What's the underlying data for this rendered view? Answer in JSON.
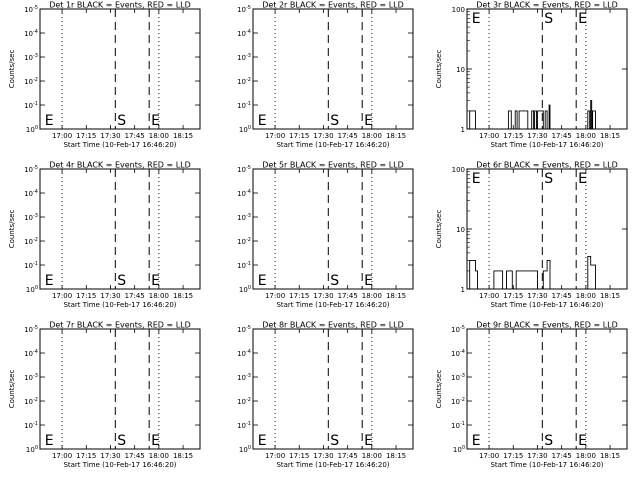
{
  "chart_data": [
    {
      "type": "line",
      "title": "Det 1r BLACK = Events, RED = LLD",
      "xlabel": "Start Time (10-Feb-17 16:46:20)",
      "ylabel": "Counts/sec",
      "yscale": "log",
      "ylim": [
        1,
        1e-05
      ],
      "yticks": [
        "10^0",
        "10^-1",
        "10^-2",
        "10^-3",
        "10^-4",
        "10^-5"
      ],
      "xticks": [
        "17:00",
        "17:15",
        "17:30",
        "17:45",
        "18:00",
        "18:15"
      ],
      "markers": [
        {
          "label": "E"
        },
        {
          "label": "S"
        },
        {
          "label": "E"
        }
      ],
      "series": []
    },
    {
      "type": "line",
      "title": "Det 2r BLACK = Events, RED = LLD",
      "xlabel": "Start Time (10-Feb-17 16:46:20)",
      "ylabel": "",
      "yscale": "log",
      "ylim": [
        1,
        1e-05
      ],
      "yticks": [
        "10^0",
        "10^-1",
        "10^-2",
        "10^-3",
        "10^-4",
        "10^-5"
      ],
      "xticks": [
        "17:00",
        "17:15",
        "17:30",
        "17:45",
        "18:00",
        "18:15"
      ],
      "markers": [
        {
          "label": "E"
        },
        {
          "label": "S"
        },
        {
          "label": "E"
        }
      ],
      "series": []
    },
    {
      "type": "line",
      "title": "Det 3r BLACK = Events, RED = LLD",
      "xlabel": "Start Time (10-Feb-17 16:46:20)",
      "ylabel": "Counts/sec",
      "yscale": "log",
      "ylim": [
        1,
        100
      ],
      "yticks": [
        "1",
        "10",
        "100"
      ],
      "xticks": [
        "17:00",
        "17:15",
        "17:30",
        "17:45",
        "18:00",
        "18:15"
      ],
      "markers": [
        {
          "label": "E"
        },
        {
          "label": "S"
        },
        {
          "label": "E"
        }
      ],
      "series": [
        {
          "color": "#000000",
          "points": [
            [
              16.8,
              1
            ],
            [
              16.8,
              2
            ],
            [
              16.86,
              2
            ],
            [
              16.86,
              1
            ],
            [
              17.2,
              1
            ],
            [
              17.2,
              2
            ],
            [
              17.23,
              2
            ],
            [
              17.23,
              1
            ],
            [
              17.27,
              1
            ],
            [
              17.27,
              2
            ],
            [
              17.29,
              2
            ],
            [
              17.29,
              1
            ],
            [
              17.31,
              1
            ],
            [
              17.31,
              2
            ],
            [
              17.4,
              2
            ],
            [
              17.4,
              1
            ],
            [
              17.44,
              1
            ],
            [
              17.44,
              2
            ],
            [
              17.46,
              2
            ],
            [
              17.46,
              1
            ],
            [
              17.47,
              1
            ],
            [
              17.47,
              2
            ],
            [
              17.49,
              2
            ],
            [
              17.49,
              1
            ],
            [
              17.5,
              1
            ],
            [
              17.5,
              2
            ],
            [
              17.56,
              2
            ],
            [
              17.56,
              1
            ],
            [
              17.58,
              1
            ],
            [
              17.58,
              2
            ],
            [
              17.6,
              2
            ],
            [
              17.6,
              1
            ],
            [
              17.62,
              1
            ],
            [
              17.62,
              2.5
            ],
            [
              17.63,
              2.5
            ],
            [
              17.63,
              1
            ],
            [
              18.02,
              1
            ],
            [
              18.02,
              2
            ],
            [
              18.04,
              2
            ],
            [
              18.04,
              1
            ],
            [
              18.05,
              1
            ],
            [
              18.05,
              3
            ],
            [
              18.06,
              3
            ],
            [
              18.06,
              1
            ],
            [
              18.07,
              1
            ],
            [
              18.07,
              2
            ],
            [
              18.1,
              2
            ],
            [
              18.1,
              1
            ]
          ]
        }
      ]
    },
    {
      "type": "line",
      "title": "Det 4r BLACK = Events, RED = LLD",
      "xlabel": "Start Time (10-Feb-17 16:46:20)",
      "ylabel": "Counts/sec",
      "yscale": "log",
      "ylim": [
        1,
        1e-05
      ],
      "yticks": [
        "10^0",
        "10^-1",
        "10^-2",
        "10^-3",
        "10^-4",
        "10^-5"
      ],
      "xticks": [
        "17:00",
        "17:15",
        "17:30",
        "17:45",
        "18:00",
        "18:15"
      ],
      "markers": [
        {
          "label": "E"
        },
        {
          "label": "S"
        },
        {
          "label": "E"
        }
      ],
      "series": []
    },
    {
      "type": "line",
      "title": "Det 5r BLACK = Events, RED = LLD",
      "xlabel": "Start Time (10-Feb-17 16:46:20)",
      "ylabel": "",
      "yscale": "log",
      "ylim": [
        1,
        1e-05
      ],
      "yticks": [
        "10^0",
        "10^-1",
        "10^-2",
        "10^-3",
        "10^-4",
        "10^-5"
      ],
      "xticks": [
        "17:00",
        "17:15",
        "17:30",
        "17:45",
        "18:00",
        "18:15"
      ],
      "markers": [
        {
          "label": "E"
        },
        {
          "label": "S"
        },
        {
          "label": "E"
        }
      ],
      "series": []
    },
    {
      "type": "line",
      "title": "Det 6r BLACK = Events, RED = LLD",
      "xlabel": "Start Time (10-Feb-17 16:46:20)",
      "ylabel": "Counts/sec",
      "yscale": "log",
      "ylim": [
        1,
        100
      ],
      "yticks": [
        "1",
        "10",
        "100"
      ],
      "xticks": [
        "17:00",
        "17:15",
        "17:30",
        "17:45",
        "18:00",
        "18:15"
      ],
      "markers": [
        {
          "label": "E"
        },
        {
          "label": "S"
        },
        {
          "label": "E"
        }
      ],
      "series": [
        {
          "color": "#000000",
          "points": [
            [
              16.8,
              1
            ],
            [
              16.8,
              3
            ],
            [
              16.86,
              3
            ],
            [
              16.86,
              2
            ],
            [
              16.88,
              2
            ],
            [
              16.88,
              1
            ],
            [
              17.05,
              1
            ],
            [
              17.05,
              2
            ],
            [
              17.14,
              2
            ],
            [
              17.14,
              1
            ],
            [
              17.18,
              1
            ],
            [
              17.18,
              2
            ],
            [
              17.24,
              2
            ],
            [
              17.24,
              1
            ],
            [
              17.28,
              1
            ],
            [
              17.28,
              2
            ],
            [
              17.5,
              2
            ],
            [
              17.5,
              1
            ],
            [
              17.56,
              1
            ],
            [
              17.56,
              2
            ],
            [
              17.6,
              2
            ],
            [
              17.6,
              3
            ],
            [
              17.63,
              3
            ],
            [
              17.63,
              1
            ],
            [
              18.02,
              1
            ],
            [
              18.02,
              3.5
            ],
            [
              18.05,
              3.5
            ],
            [
              18.05,
              2.5
            ],
            [
              18.1,
              2.5
            ],
            [
              18.1,
              1
            ]
          ]
        }
      ]
    },
    {
      "type": "line",
      "title": "Det 7r BLACK = Events, RED = LLD",
      "xlabel": "Start Time (10-Feb-17 16:46:20)",
      "ylabel": "Counts/sec",
      "yscale": "log",
      "ylim": [
        1,
        1e-05
      ],
      "yticks": [
        "10^0",
        "10^-1",
        "10^-2",
        "10^-3",
        "10^-4",
        "10^-5"
      ],
      "xticks": [
        "17:00",
        "17:15",
        "17:30",
        "17:45",
        "18:00",
        "18:15"
      ],
      "markers": [
        {
          "label": "E"
        },
        {
          "label": "S"
        },
        {
          "label": "E"
        }
      ],
      "series": []
    },
    {
      "type": "line",
      "title": "Det 8r BLACK = Events, RED = LLD",
      "xlabel": "Start Time (10-Feb-17 16:46:20)",
      "ylabel": "",
      "yscale": "log",
      "ylim": [
        1,
        1e-05
      ],
      "yticks": [
        "10^0",
        "10^-1",
        "10^-2",
        "10^-3",
        "10^-4",
        "10^-5"
      ],
      "xticks": [
        "17:00",
        "17:15",
        "17:30",
        "17:45",
        "18:00",
        "18:15"
      ],
      "markers": [
        {
          "label": "E"
        },
        {
          "label": "S"
        },
        {
          "label": "E"
        }
      ],
      "series": []
    },
    {
      "type": "line",
      "title": "Det 9r BLACK = Events, RED = LLD",
      "xlabel": "Start Time (10-Feb-17 16:46:20)",
      "ylabel": "Counts/sec",
      "yscale": "log",
      "ylim": [
        1,
        1e-05
      ],
      "yticks": [
        "10^0",
        "10^-1",
        "10^-2",
        "10^-3",
        "10^-4",
        "10^-5"
      ],
      "xticks": [
        "17:00",
        "17:15",
        "17:30",
        "17:45",
        "18:00",
        "18:15"
      ],
      "markers": [
        {
          "label": "E"
        },
        {
          "label": "S"
        },
        {
          "label": "E"
        }
      ],
      "series": []
    }
  ]
}
